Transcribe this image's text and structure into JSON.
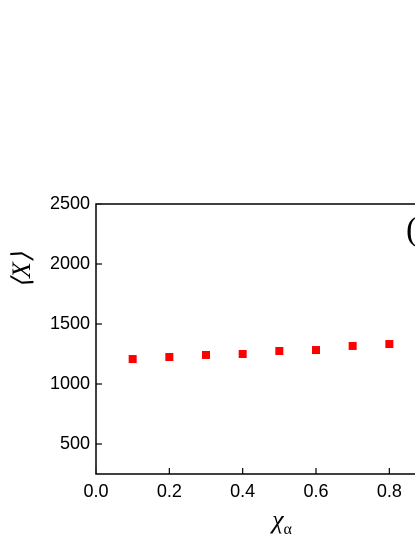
{
  "chart_data": {
    "type": "scatter",
    "xlabel": "χ",
    "xlabel_sub": "α",
    "ylabel": "⟨X⟩",
    "annotation": "(",
    "series": [
      {
        "color": "#ff0000",
        "x": [
          0.1,
          0.2,
          0.3,
          0.4,
          0.5,
          0.6,
          0.7,
          0.8
        ],
        "values": [
          1208,
          1225,
          1242,
          1250,
          1275,
          1283,
          1317,
          1333
        ]
      }
    ],
    "xlim": [
      0,
      0.87
    ],
    "ylim": [
      250,
      2500
    ],
    "xticks": [
      {
        "value": 0,
        "label": "0.0"
      },
      0.2,
      0.4,
      0.6,
      0.8
    ],
    "yticks": [
      500,
      1000,
      1500,
      2000,
      2500
    ]
  }
}
